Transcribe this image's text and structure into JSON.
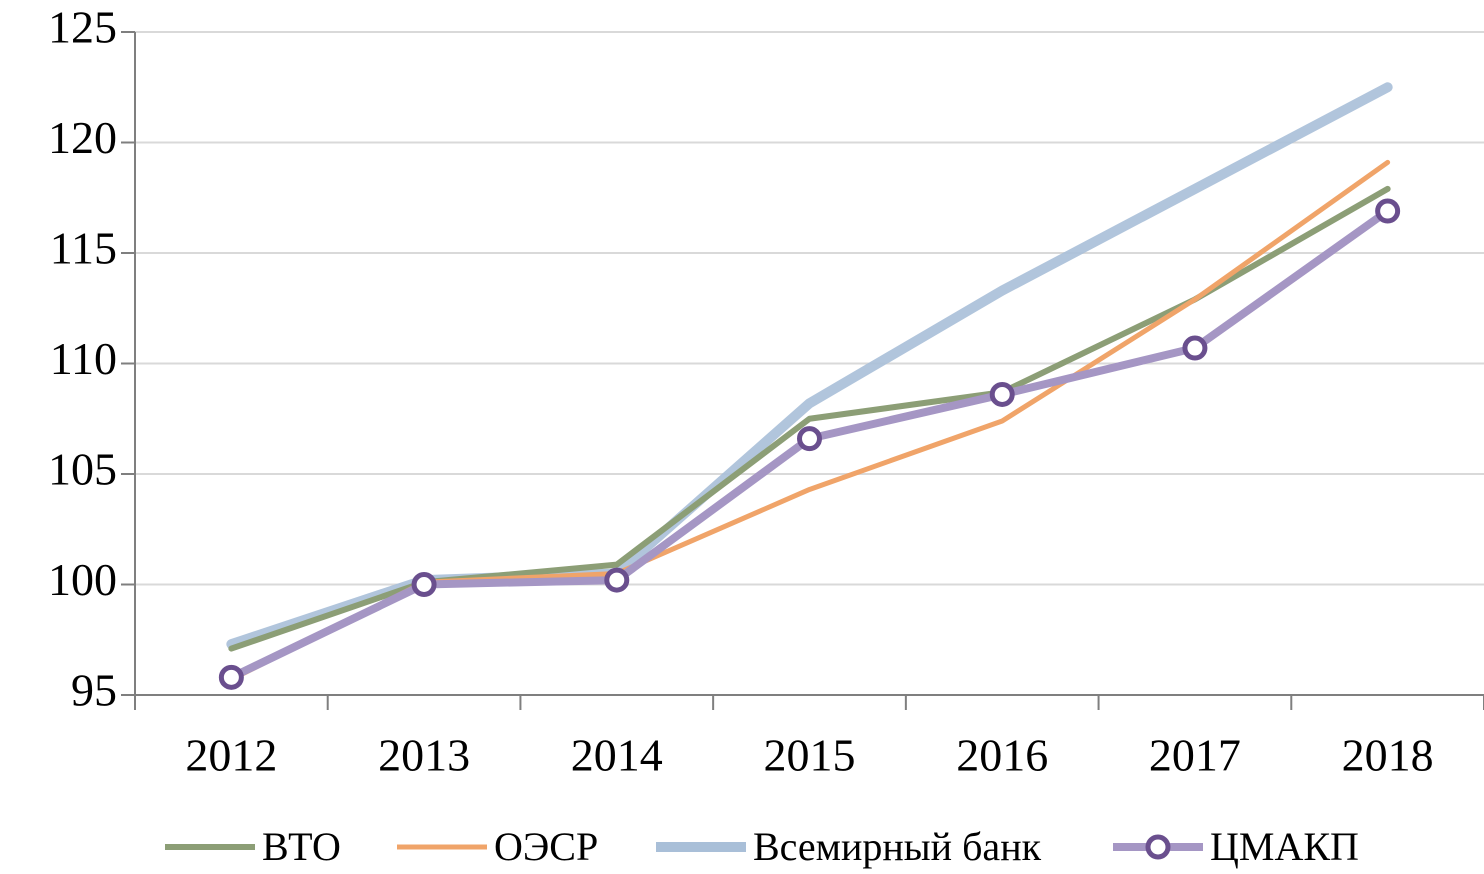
{
  "chart_data": {
    "type": "line",
    "categories": [
      "2012",
      "2013",
      "2014",
      "2015",
      "2016",
      "2017",
      "2018"
    ],
    "series": [
      {
        "name": "ВТО",
        "color": "#8c9e76",
        "values": [
          97.1,
          100.1,
          100.9,
          107.5,
          108.7,
          112.9,
          117.9
        ]
      },
      {
        "name": "ОЭСР",
        "color": "#f0a469",
        "values": [
          95.7,
          100.1,
          100.5,
          104.3,
          107.4,
          112.9,
          119.1
        ]
      },
      {
        "name": "Всемирный банк",
        "color": "#a9bfd8",
        "values": [
          97.3,
          100.2,
          100.5,
          108.2,
          113.3,
          117.9,
          122.5
        ]
      },
      {
        "name": "ЦМАКП",
        "color": "#a596c4",
        "marker_color": "#6a4f8e",
        "values": [
          95.8,
          100.0,
          100.2,
          106.6,
          108.6,
          110.7,
          116.9
        ]
      }
    ],
    "ylim": [
      95,
      125
    ],
    "yticks": [
      95,
      100,
      105,
      110,
      115,
      120,
      125
    ],
    "grid": true,
    "legend": "bottom"
  }
}
